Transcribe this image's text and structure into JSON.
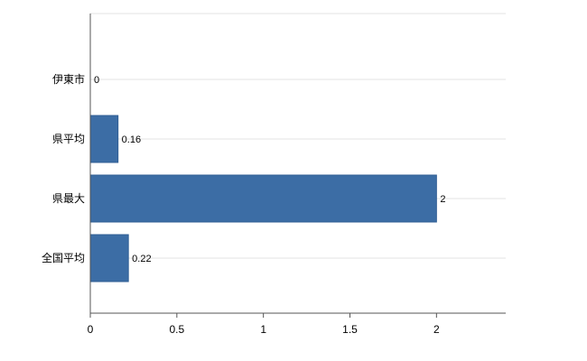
{
  "chart_data": {
    "type": "bar",
    "orientation": "horizontal",
    "title": "",
    "xlabel": "",
    "ylabel": "",
    "categories": [
      "伊東市",
      "県平均",
      "県最大",
      "全国平均"
    ],
    "values": [
      0,
      0.16,
      2,
      0.22
    ],
    "value_labels": [
      "0",
      "0.16",
      "2",
      "0.22"
    ],
    "xticks": [
      0,
      0.5,
      1,
      1.5,
      2
    ],
    "xtick_labels": [
      "0",
      "0.5",
      "1",
      "1.5",
      "2"
    ],
    "xlim": [
      0,
      2.4
    ],
    "legend_position": "none",
    "grid": "category-center-lines",
    "colors": {
      "bar": "#3c6da5",
      "bar_border": "#2f5e94",
      "gridline": "#e3e3e3",
      "axis": "#555555",
      "text": "#000000",
      "background": "#ffffff"
    }
  }
}
